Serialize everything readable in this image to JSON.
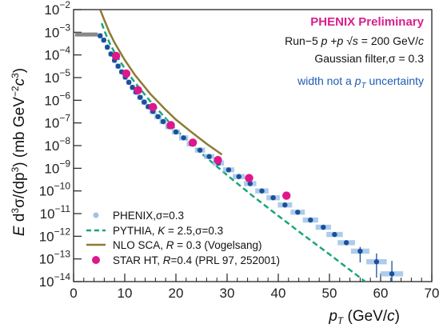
{
  "chart_data": {
    "type": "scatter",
    "xlabel": "p_T (GeV/c)",
    "ylabel": "E d³σ/(dp³) (mb GeV⁻²c³)",
    "xlim": [
      0,
      70
    ],
    "ylim_log10": [
      -14,
      -2
    ],
    "log_y": true,
    "grid": false,
    "x_ticks": [
      0,
      10,
      20,
      30,
      40,
      50,
      60,
      70
    ],
    "y_tick_exponents": [
      -2,
      -3,
      -4,
      -5,
      -6,
      -7,
      -8,
      -9,
      -10,
      -11,
      -12,
      -13,
      -14
    ],
    "legend_position": "bottom-left",
    "annotations": {
      "title": "PHENIX Preliminary",
      "line1": "Run−5 p+p √s = 200 GeV/c",
      "line2": "Gaussian filter,σ = 0.3",
      "note": "width not a p_T uncertainty"
    },
    "series": [
      {
        "name": "PHENIX,σ=0.3",
        "kind": "points",
        "color": "#1a4f9c",
        "band_color": "#9dc3e6",
        "x": [
          5.2,
          5.9,
          6.6,
          7.3,
          8.0,
          8.7,
          9.4,
          10.1,
          10.8,
          11.5,
          12.2,
          13.0,
          13.8,
          14.6,
          15.5,
          16.5,
          17.5,
          18.7,
          20.0,
          21.5,
          23.0,
          24.7,
          26.5,
          28.3,
          30.3,
          32.3,
          34.5,
          36.8,
          39.0,
          41.3,
          43.8,
          46.3,
          48.8,
          51.0,
          53.3,
          56.0,
          59.2,
          62.2
        ],
        "y": [
          0.0007,
          0.00045,
          0.00022,
          0.00011,
          5.8e-05,
          3.2e-05,
          1.8e-05,
          1.05e-05,
          6.2e-06,
          3.7e-06,
          2.3e-06,
          1.35e-06,
          8.3e-07,
          5.2e-07,
          3.2e-07,
          1.9e-07,
          1.15e-07,
          6.9e-08,
          4e-08,
          2.2e-08,
          1.2e-08,
          6.3e-09,
          3.3e-09,
          1.7e-09,
          8.5e-10,
          4.3e-10,
          2.1e-10,
          1e-10,
          5e-11,
          2.4e-11,
          1.15e-11,
          5.2e-12,
          2.5e-12,
          1.2e-12,
          5.2e-13,
          2.2e-13,
          7.5e-14,
          2.2e-14
        ],
        "xerr": [
          0.5,
          0.5,
          0.5,
          0.5,
          0.5,
          0.5,
          0.5,
          0.5,
          0.5,
          0.5,
          0.6,
          0.6,
          0.6,
          0.6,
          0.7,
          0.7,
          0.7,
          0.8,
          0.8,
          0.9,
          0.9,
          1.0,
          1.0,
          1.1,
          1.1,
          1.2,
          1.2,
          1.3,
          1.3,
          1.4,
          1.4,
          1.5,
          1.5,
          1.6,
          1.7,
          1.8,
          2.0,
          2.2
        ],
        "yerr_up": [
          0,
          0,
          0,
          0,
          0,
          0,
          0,
          0,
          0,
          0,
          0,
          0,
          0,
          0,
          0,
          0,
          0,
          0,
          0,
          0,
          0,
          0,
          0,
          0,
          0,
          0,
          0,
          0,
          0,
          0,
          0,
          0,
          0,
          0,
          0,
          1.2e-13,
          1e-13,
          6e-14
        ],
        "yerr_down": [
          0,
          0,
          0,
          0,
          0,
          0,
          0,
          0,
          0,
          0,
          0,
          0,
          0,
          0,
          0,
          0,
          0,
          0,
          0,
          0,
          0,
          0,
          0,
          0,
          0,
          0,
          0,
          0,
          0,
          0,
          0,
          0,
          0,
          0,
          0,
          1.5e-13,
          6e-14,
          2.1e-14
        ]
      },
      {
        "name": "PYTHIA, K = 2.5,σ=0.3",
        "kind": "dashed-line",
        "color": "#1aa57a",
        "x": [
          5.5,
          6,
          7,
          8,
          10,
          12,
          15,
          20,
          25,
          30,
          35,
          40,
          45,
          50,
          55,
          60,
          65,
          68
        ],
        "y": [
          0.0025,
          0.0012,
          0.00035,
          0.00013,
          2.5e-05,
          6e-06,
          9e-07,
          5e-08,
          4.5e-09,
          5e-10,
          6e-11,
          8e-12,
          1.1e-12,
          1.6e-13,
          2.2e-14,
          3e-15,
          4e-16,
          1.2e-16
        ]
      },
      {
        "name": "NLO SCA, R = 0.3 (Vogelsang)",
        "kind": "line",
        "color": "#8e7a33",
        "x": [
          5.2,
          6,
          7,
          8,
          10,
          12,
          15,
          18,
          20,
          23,
          26,
          29
        ],
        "y": [
          0.01,
          0.0035,
          0.001,
          0.00035,
          6e-05,
          1.3e-05,
          1.9e-06,
          3.8e-07,
          1.4e-07,
          4e-08,
          1.2e-08,
          4e-09
        ]
      },
      {
        "name": "STAR HT, R=0.4 (PRL 97, 252001)",
        "kind": "points",
        "color": "#e0168a",
        "x": [
          8.3,
          10.3,
          12.6,
          15.5,
          19.0,
          23.3,
          28.2,
          34.3,
          41.6
        ],
        "y": [
          9e-05,
          1.5e-05,
          2.8e-06,
          5e-07,
          8e-08,
          1.35e-08,
          2.3e-09,
          3.7e-10,
          6.2e-11
        ]
      }
    ],
    "data_box_marker": {
      "x": 2.5,
      "y": 0.0008,
      "color": "#888888",
      "width": 5
    }
  }
}
